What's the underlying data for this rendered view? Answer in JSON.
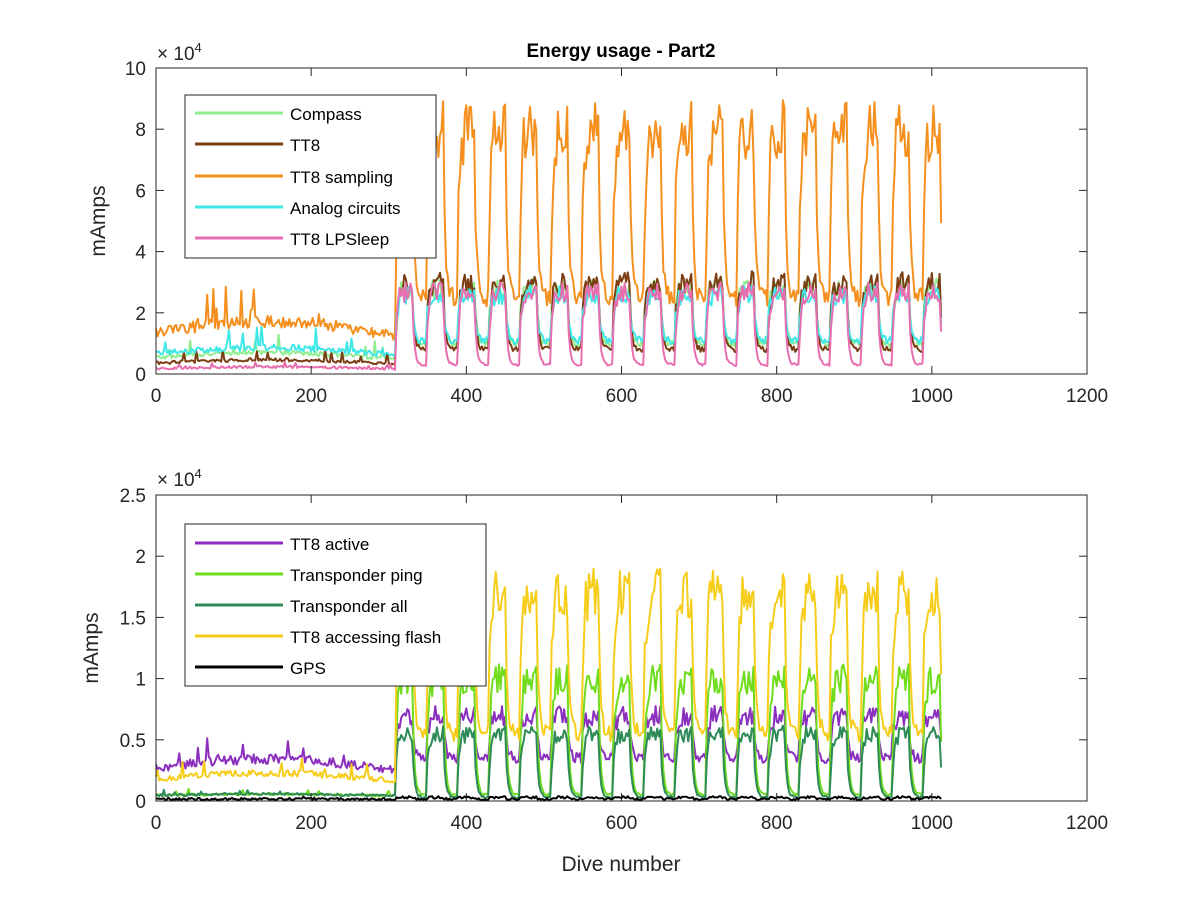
{
  "chart_data": [
    {
      "type": "line",
      "title": "Energy usage - Part2",
      "xlabel": "",
      "ylabel": "mAmps",
      "xlim": [
        0,
        1200
      ],
      "ylim": [
        0,
        100000
      ],
      "x_ticks": [
        "0",
        "200",
        "400",
        "600",
        "800",
        "1000",
        "1200"
      ],
      "y_ticks": [
        "0",
        "2",
        "4",
        "6",
        "8",
        "10"
      ],
      "y_exponent": {
        "base": "× 10",
        "power": "4"
      },
      "grid": false,
      "legend_position": "top-left",
      "x_range_of_data": [
        0,
        1012
      ],
      "series": [
        {
          "name": "Compass",
          "color": "#90EE90",
          "baseline": 6000,
          "dive_phase_level": 28000,
          "surface_phase_level": 10000
        },
        {
          "name": "TT8",
          "color": "#7A3E12",
          "baseline": 4000,
          "dive_phase_level": 30000,
          "surface_phase_level": 8000
        },
        {
          "name": "TT8 sampling",
          "color": "#F5901E",
          "baseline": 15000,
          "dive_phase_level": 80000,
          "surface_phase_level": 25000
        },
        {
          "name": "Analog circuits",
          "color": "#3FE8E8",
          "baseline": 7500,
          "dive_phase_level": 26000,
          "surface_phase_level": 11000
        },
        {
          "name": "TT8 LPSleep",
          "color": "#E86EB0",
          "baseline": 2000,
          "dive_phase_level": 27000,
          "surface_phase_level": 3000
        }
      ]
    },
    {
      "type": "line",
      "title": "",
      "xlabel": "Dive number",
      "ylabel": "mAmps",
      "xlim": [
        0,
        1200
      ],
      "ylim": [
        0,
        25000
      ],
      "x_ticks": [
        "0",
        "200",
        "400",
        "600",
        "800",
        "1000",
        "1200"
      ],
      "y_ticks": [
        "0",
        "0.5",
        "1",
        "1.5",
        "2",
        "2.5"
      ],
      "y_exponent": {
        "base": "× 10",
        "power": "4"
      },
      "grid": false,
      "legend_position": "top-left",
      "x_range_of_data": [
        0,
        1012
      ],
      "series": [
        {
          "name": "TT8 active",
          "color": "#8B2FBF",
          "baseline": 3000,
          "dive_phase_level": 7000,
          "surface_phase_level": 3500
        },
        {
          "name": "Transponder ping",
          "color": "#6FDC1E",
          "baseline": 500,
          "dive_phase_level": 10000,
          "surface_phase_level": 500
        },
        {
          "name": "Transponder all",
          "color": "#2E8B57",
          "baseline": 500,
          "dive_phase_level": 5500,
          "surface_phase_level": 300
        },
        {
          "name": "TT8 accessing flash",
          "color": "#F7CD1C",
          "baseline": 2000,
          "dive_phase_level": 17000,
          "surface_phase_level": 5500
        },
        {
          "name": "GPS",
          "color": "#000000",
          "baseline": 150,
          "dive_phase_level": 300,
          "surface_phase_level": 150
        }
      ]
    }
  ]
}
